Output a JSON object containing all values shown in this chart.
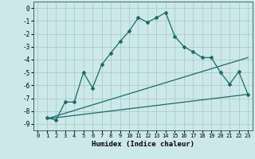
{
  "xlabel": "Humidex (Indice chaleur)",
  "background_color": "#cce8e8",
  "grid_color": "#aacccc",
  "line_color": "#1a6b6b",
  "xlim": [
    -0.5,
    23.5
  ],
  "ylim": [
    -9.5,
    0.5
  ],
  "xticks": [
    0,
    1,
    2,
    3,
    4,
    5,
    6,
    7,
    8,
    9,
    10,
    11,
    12,
    13,
    14,
    15,
    16,
    17,
    18,
    19,
    20,
    21,
    22,
    23
  ],
  "yticks": [
    0,
    -1,
    -2,
    -3,
    -4,
    -5,
    -6,
    -7,
    -8,
    -9
  ],
  "line1_x": [
    1,
    2,
    3,
    4,
    5,
    6,
    7,
    8,
    9,
    10,
    11,
    12,
    13,
    14,
    15,
    16,
    17,
    18,
    19,
    20,
    21,
    22,
    23
  ],
  "line1_y": [
    -8.5,
    -8.7,
    -7.3,
    -7.3,
    -5.0,
    -6.2,
    -4.4,
    -3.5,
    -2.6,
    -1.8,
    -0.75,
    -1.1,
    -0.75,
    -0.35,
    -2.2,
    -3.0,
    -3.4,
    -3.85,
    -3.85,
    -5.0,
    -5.9,
    -4.95,
    -6.7
  ],
  "line2_x": [
    1,
    23
  ],
  "line2_y": [
    -8.6,
    -3.85
  ],
  "line3_x": [
    1,
    23
  ],
  "line3_y": [
    -8.6,
    -6.7
  ]
}
